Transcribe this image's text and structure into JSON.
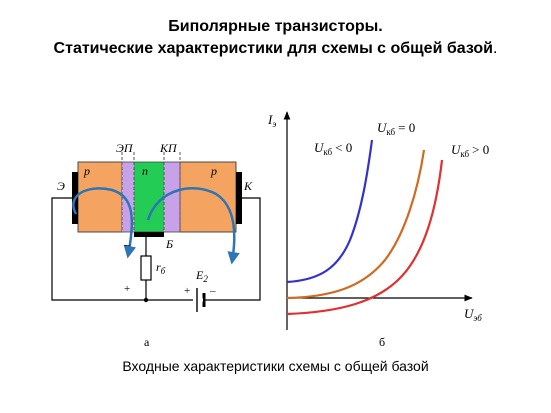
{
  "title": {
    "line1": "Биполярные транзисторы.",
    "line2_main": "Статические характеристики для схемы с общей базой",
    "line2_end": "."
  },
  "diagram_a": {
    "label": "а",
    "junction_emitter": "ЭП",
    "junction_collector": "КП",
    "region_p_left": "p",
    "region_n": "n",
    "region_p_right": "p",
    "terminal_emitter": "Э",
    "terminal_collector": "К",
    "terminal_base": "Б",
    "resistor_label": "r",
    "resistor_sub": "б",
    "source_label": "E",
    "source_sub": "2",
    "minus_base": "–",
    "plus_base": "+",
    "plus_source": "+",
    "minus_source": "–",
    "colors": {
      "p_region": "#F4A460",
      "depletion": "#C8A2E8",
      "n_region": "#22CC55",
      "arrows": "#2E75B6"
    }
  },
  "diagram_b": {
    "label": "б",
    "y_axis_label": "I",
    "y_axis_sub": "э",
    "x_axis_label": "U",
    "x_axis_sub": "эб",
    "curve_neg_label": "U",
    "curve_neg_sub": "кб",
    "curve_neg_cond": "< 0",
    "curve_zero_label": "U",
    "curve_zero_sub": "кб",
    "curve_zero_cond": "= 0",
    "curve_pos_label": "U",
    "curve_pos_sub": "кб",
    "curve_pos_cond": "> 0",
    "colors": {
      "curve_neg": "#3333CC",
      "curve_zero": "#D2691E",
      "curve_pos": "#E03030"
    }
  },
  "caption": "Входные характеристики схемы с общей базой"
}
